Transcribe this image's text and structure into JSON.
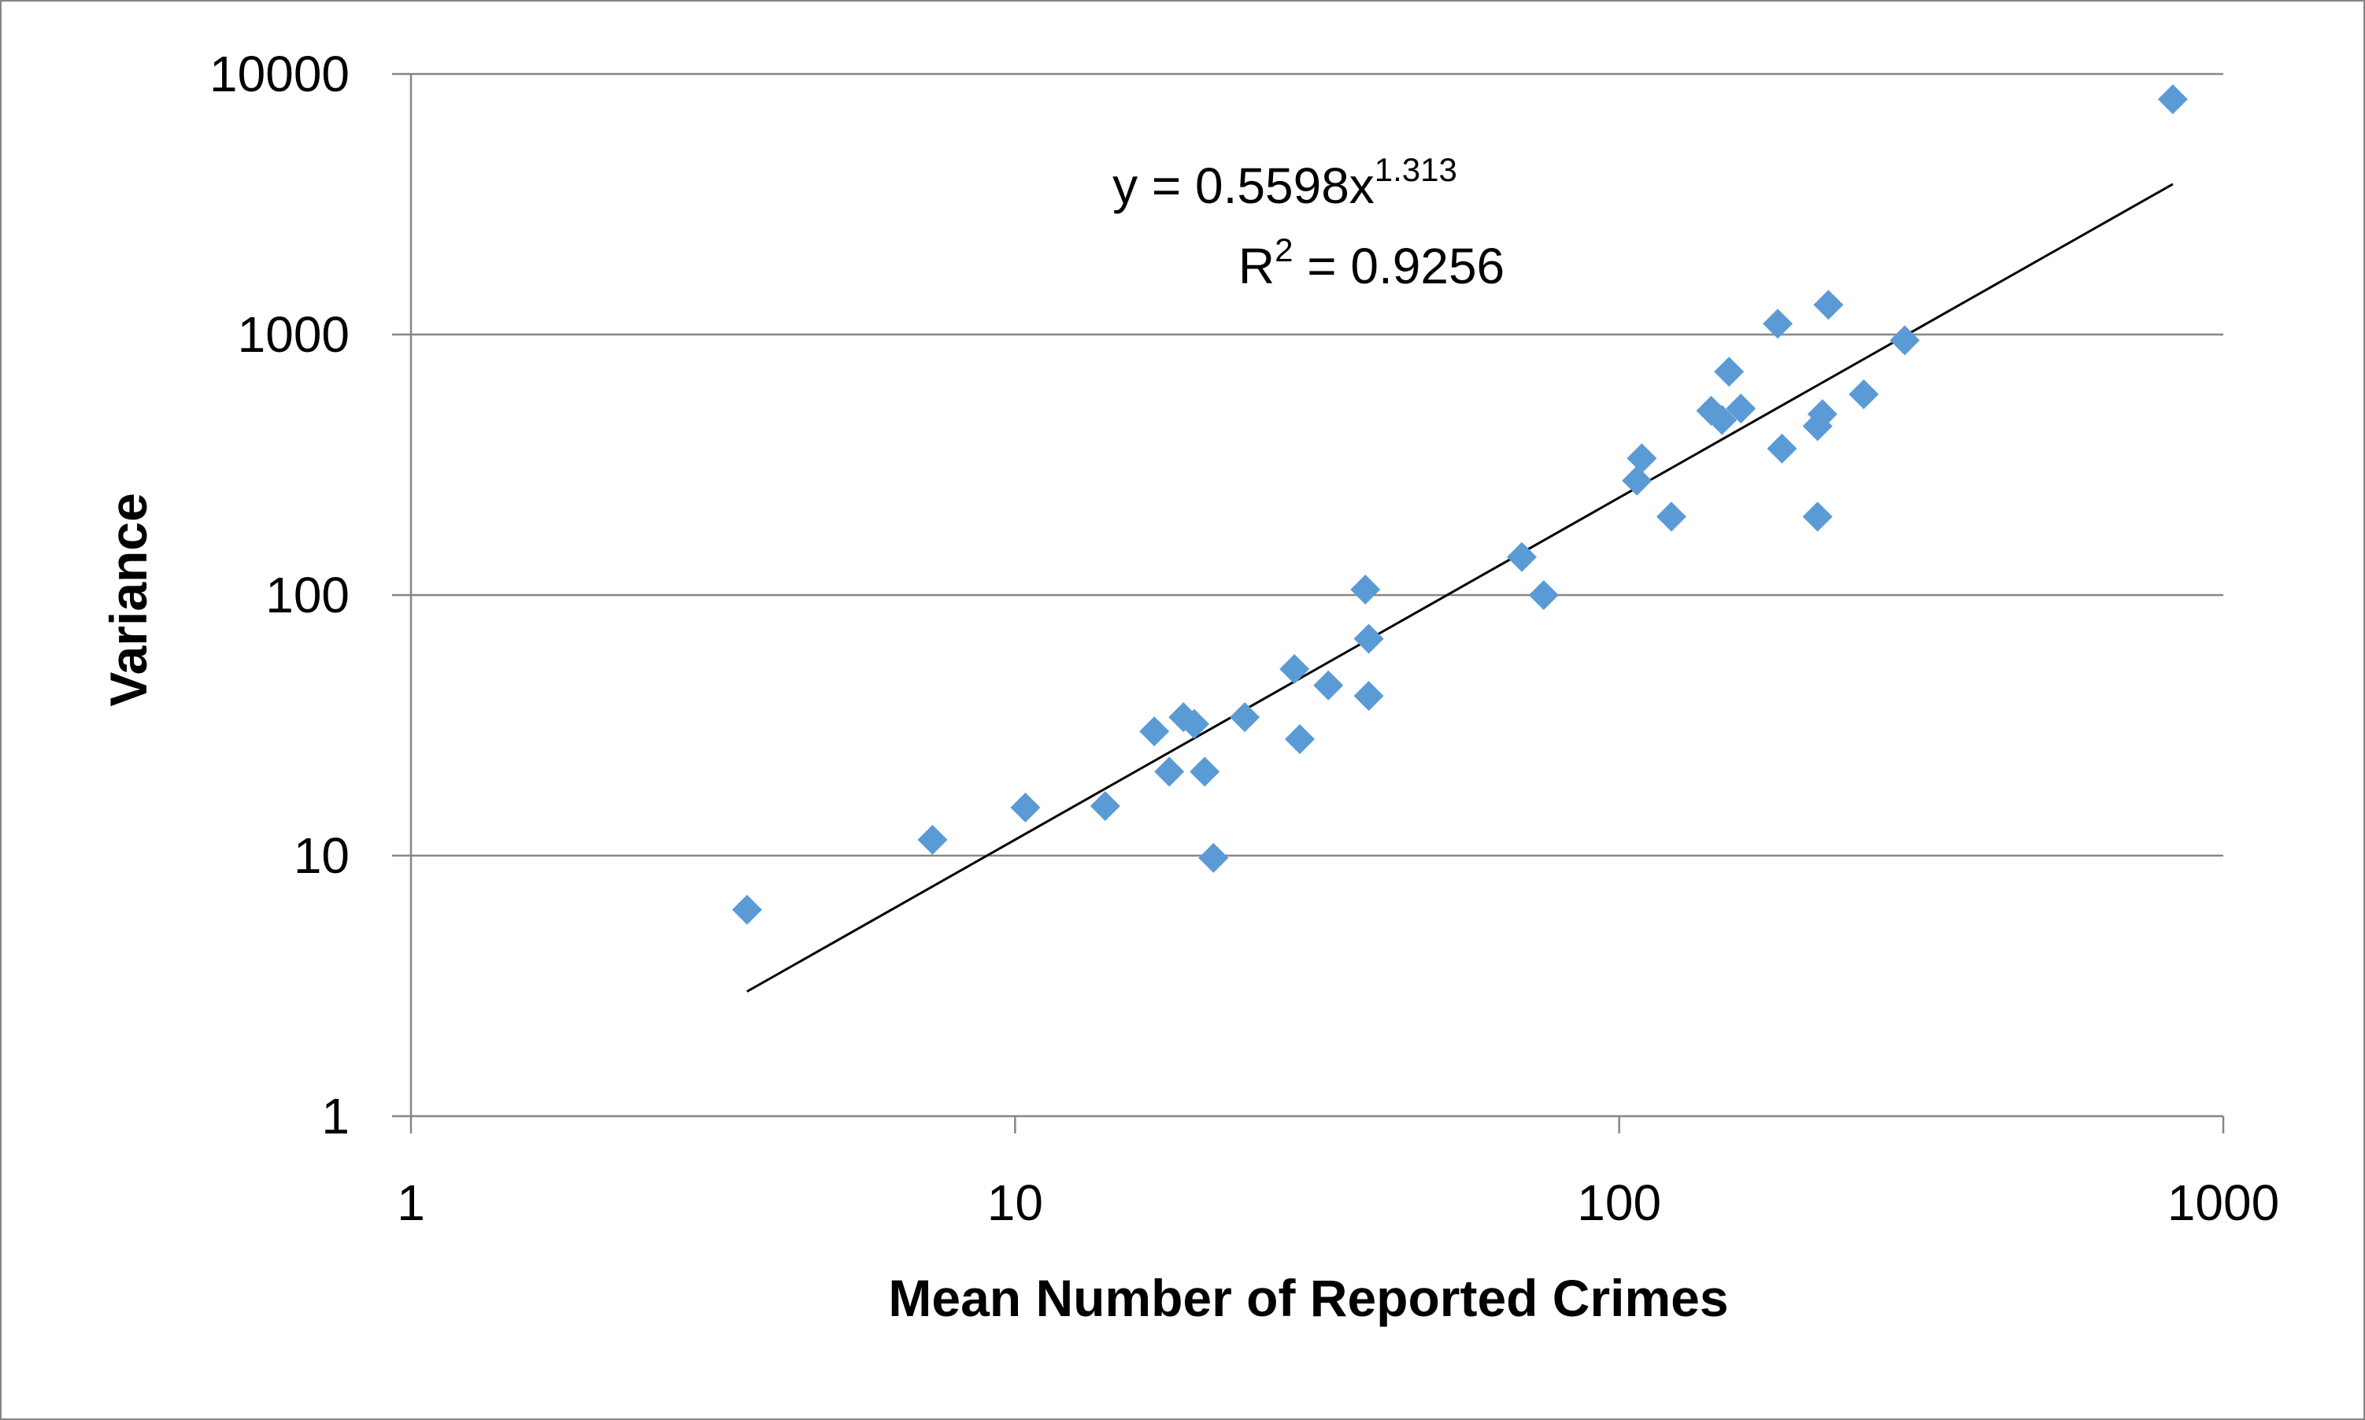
{
  "chart_data": {
    "type": "scatter",
    "title": "",
    "xlabel": "Mean Number of Reported Crimes",
    "ylabel": "Variance",
    "xscale": "log",
    "yscale": "log",
    "xlim": [
      1,
      1000
    ],
    "ylim": [
      1,
      10000
    ],
    "xticks": [
      1,
      10,
      100,
      1000
    ],
    "yticks": [
      1,
      10,
      100,
      1000,
      10000
    ],
    "xtick_labels": [
      "1",
      "10",
      "100",
      "1000"
    ],
    "ytick_labels": [
      "1",
      "10",
      "100",
      "1000",
      "10000"
    ],
    "grid": "horizontal",
    "legend": "none",
    "marker": "diamond",
    "marker_color": "#5B9BD5",
    "trendline_color": "#000000",
    "series": [
      {
        "points": [
          [
            3.6,
            6.2
          ],
          [
            7.3,
            11.5
          ],
          [
            10.4,
            15.3
          ],
          [
            14.1,
            15.5
          ],
          [
            17.0,
            30.0
          ],
          [
            18.0,
            21.0
          ],
          [
            19.0,
            34.0
          ],
          [
            19.8,
            32.0
          ],
          [
            20.6,
            21.0
          ],
          [
            21.3,
            9.8
          ],
          [
            24.0,
            34.0
          ],
          [
            29.0,
            52.0
          ],
          [
            29.6,
            28.0
          ],
          [
            33.0,
            45.0
          ],
          [
            38.0,
            105.0
          ],
          [
            38.5,
            68.0
          ],
          [
            38.5,
            41.0
          ],
          [
            69.0,
            140.0
          ],
          [
            75.0,
            100.0
          ],
          [
            107.0,
            275.0
          ],
          [
            109.0,
            335.0
          ],
          [
            122.0,
            200.0
          ],
          [
            142.0,
            510.0
          ],
          [
            148.0,
            470.0
          ],
          [
            152.0,
            720.0
          ],
          [
            159.0,
            520.0
          ],
          [
            183.0,
            1100.0
          ],
          [
            186.0,
            365.0
          ],
          [
            213.0,
            445.0
          ],
          [
            213.0,
            200.0
          ],
          [
            217.0,
            495.0
          ],
          [
            222.0,
            1300.0
          ],
          [
            254.0,
            590.0
          ],
          [
            297.0,
            950.0
          ],
          [
            825.0,
            8000.0
          ]
        ]
      }
    ],
    "trendline": {
      "type": "power",
      "coef": 0.5598,
      "exponent": 1.313,
      "x_range": [
        3.6,
        825
      ],
      "equation_prefix": "y = 0.5598x",
      "equation_exponent": "1.313",
      "r2_prefix": "R",
      "r2_sup": "2",
      "r2_value": " = 0.9256"
    }
  }
}
